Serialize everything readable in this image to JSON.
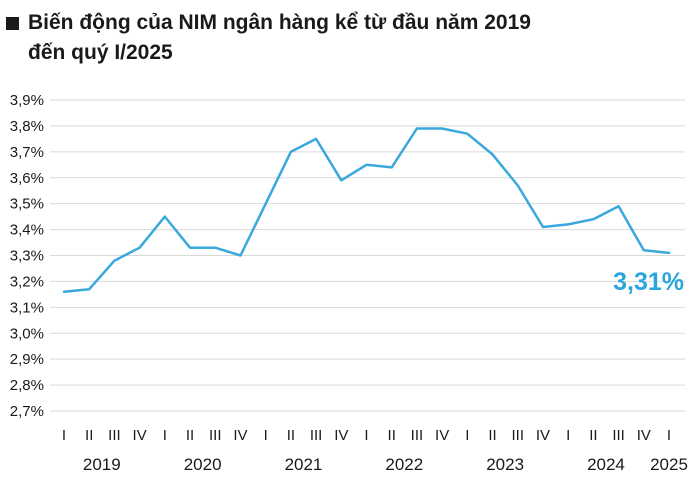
{
  "title": {
    "line1": "Biến động của NIM ngân hàng kể từ đầu năm 2019",
    "line2": "đến quý I/2025"
  },
  "colors": {
    "line": "#3aa8dc",
    "highlight": "#2aa5dd",
    "grid": "#d9d9d9",
    "text": "#1a1a1a",
    "marker": "#1a1a1a"
  },
  "chart_data": {
    "type": "line",
    "title": "Biến động của NIM ngân hàng kể từ đầu năm 2019 đến quý I/2025",
    "xlabel": "",
    "ylabel": "",
    "ylim": [
      2.7,
      3.9
    ],
    "grid": true,
    "legend": "none",
    "y_ticks": [
      "2,7%",
      "2,8%",
      "2,9%",
      "3,0%",
      "3,1%",
      "3,2%",
      "3,3%",
      "3,4%",
      "3,5%",
      "3,6%",
      "3,7%",
      "3,8%",
      "3,9%"
    ],
    "categories": [
      "I",
      "II",
      "III",
      "IV",
      "I",
      "II",
      "III",
      "IV",
      "I",
      "II",
      "III",
      "IV",
      "I",
      "II",
      "III",
      "IV",
      "I",
      "II",
      "III",
      "IV",
      "I",
      "II",
      "III",
      "IV",
      "I"
    ],
    "years": [
      {
        "label": "2019",
        "start": 0,
        "end": 3
      },
      {
        "label": "2020",
        "start": 4,
        "end": 7
      },
      {
        "label": "2021",
        "start": 8,
        "end": 11
      },
      {
        "label": "2022",
        "start": 12,
        "end": 15
      },
      {
        "label": "2023",
        "start": 16,
        "end": 19
      },
      {
        "label": "2024",
        "start": 20,
        "end": 23
      },
      {
        "label": "2025",
        "start": 24,
        "end": 24
      }
    ],
    "series": [
      {
        "values": [
          3.16,
          3.17,
          3.28,
          3.33,
          3.45,
          3.33,
          3.33,
          3.3,
          3.5,
          3.7,
          3.75,
          3.59,
          3.65,
          3.64,
          3.79,
          3.79,
          3.77,
          3.69,
          3.57,
          3.41,
          3.42,
          3.44,
          3.49,
          3.32,
          3.31
        ]
      }
    ],
    "annotation": {
      "text": "3,31%",
      "index": 24
    }
  }
}
